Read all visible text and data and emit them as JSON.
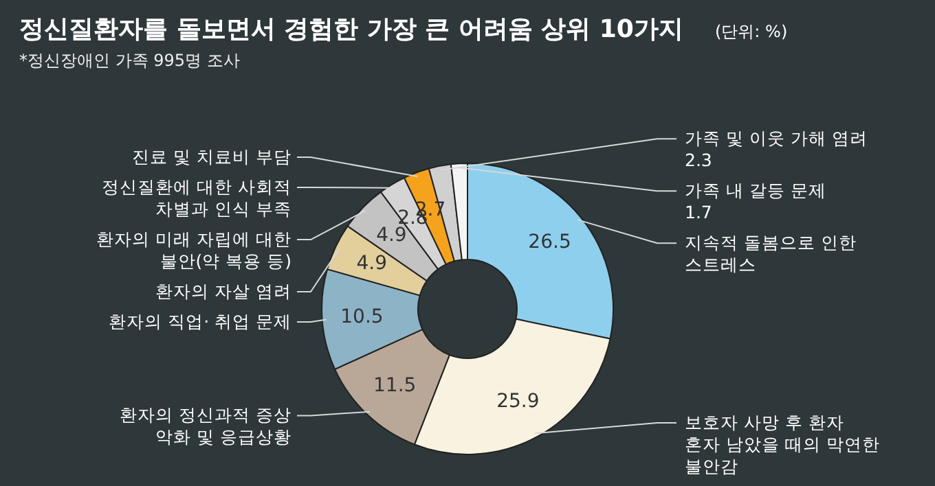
{
  "chart_data": {
    "type": "donut",
    "title": "정신질환자를 돌보면서 경험한 가장 큰 어려움 상위 10가지",
    "subtitle": "*정신장애인 가족 995명 조사",
    "annotations": [
      "(단위: %)"
    ],
    "categories": [
      "지속적 돌봄으로 인한 스트레스",
      "보호자 사망 후 환자 혼자 남았을 때의 막연한 불안감",
      "환자의 정신과적 증상 악화 및 응급상황",
      "환자의 직업· 취업 문제",
      "환자의 자살 염려",
      "환자의 미래 자립에 대한 불안(약 복용 등)",
      "정신질환에 대한 사회적 차별과 인식 부족",
      "진료 및 치료비 부담",
      "가족 및 이웃 가해 염려 2.3",
      "가족 내 갈등 문제 1.7"
    ],
    "values": [
      26.5,
      25.9,
      11.5,
      10.5,
      4.9,
      4.9,
      2.8,
      2.7,
      2.3,
      1.7
    ],
    "colors": [
      "#8ecfee",
      "#f8f2e0",
      "#b9a898",
      "#8db3c7",
      "#e2cf9b",
      "#c3c3c3",
      "#d5d5d5",
      "#f5a21c",
      "#d0d0d0",
      "#f4f4f4"
    ],
    "value_labels": [
      "26.5",
      "25.9",
      "11.5",
      "10.5",
      "4.9",
      "4.9",
      "2.8",
      "2.7",
      null,
      null
    ]
  }
}
